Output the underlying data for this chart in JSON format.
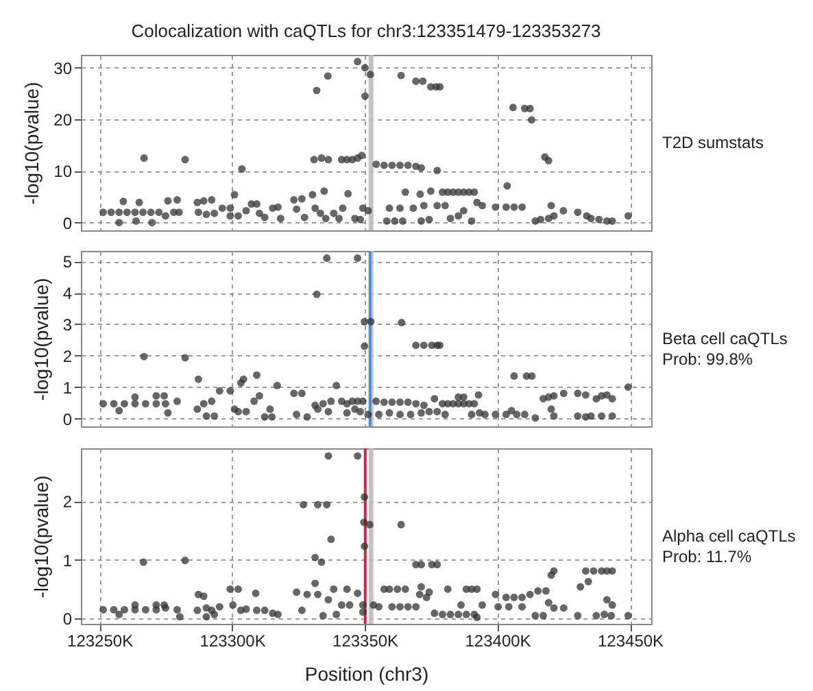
{
  "chart_data": [
    {
      "type": "scatter",
      "title": "Colocalization with caQTLs for chr3:123351479-123353273",
      "ylabel": "-log10(pvalue)",
      "annotations": [
        "T2D sumstats"
      ],
      "color": "#333333",
      "marker": "circle",
      "grid": true,
      "tick_labels": "y",
      "xlim": [
        123243,
        123458
      ],
      "xticks": [
        {
          "value": 123250,
          "label": null
        },
        {
          "value": 123300,
          "label": null
        },
        {
          "value": 123350,
          "label": null
        },
        {
          "value": 123400,
          "label": null
        },
        {
          "value": 123450,
          "label": null
        }
      ],
      "ylim": [
        -1.5,
        32.5
      ],
      "yticks": [
        0,
        10,
        20,
        30
      ],
      "bands": [
        {
          "axis": "x",
          "from": 123351.479,
          "to": 123353.273,
          "color": "#bdbdbd"
        }
      ],
      "x": [
        123251.4,
        123254.4,
        123257.4,
        123260.4,
        123263.4,
        123266.4,
        123269.4,
        123272.4,
        123274.9,
        123259,
        123257.4,
        123263.8,
        123265,
        123269.8,
        123266.8,
        123282.3,
        123275.8,
        123279.3,
        123278,
        123280,
        123286.9,
        123289.3,
        123292.3,
        123287.3,
        123290.3,
        123293.3,
        123296.3,
        123299.3,
        123300.9,
        123299.3,
        123302.3,
        123303.7,
        123305.3,
        123307.3,
        123309.3,
        123310.3,
        123312.3,
        123315.3,
        123317.3,
        123318.3,
        123323.3,
        123326.3,
        123324.3,
        123327.3,
        123330.3,
        123331.3,
        123331.9,
        123336.1,
        123330.9,
        123333.7,
        123336.3,
        123334.7,
        123333.3,
        123335.3,
        123338.3,
        123340.3,
        123341.3,
        123343.3,
        123345.3,
        123347.3,
        123348.9,
        123343.7,
        123341.7,
        123347.3,
        123350.1,
        123352.1,
        123350.1,
        123349.3,
        123351.3,
        123346.3,
        123348.3,
        123354.3,
        123357.3,
        123360.3,
        123363.3,
        123366.3,
        123369.3,
        123371.3,
        123377.3,
        123363.7,
        123369.3,
        123371.9,
        123374.9,
        123376.9,
        123378.3,
        123358.3,
        123361.3,
        123364.3,
        123359.3,
        123363.3,
        123365.3,
        123368.3,
        123370.9,
        123372.3,
        123374.9,
        123371.3,
        123374.3,
        123377.3,
        123380.3,
        123379.3,
        123381.3,
        123383.3,
        123385.3,
        123387.3,
        123389.3,
        123391.3,
        123382.3,
        123385.3,
        123387.3,
        123390.3,
        123392.3,
        123394.3,
        123399.3,
        123403.3,
        123406.3,
        123409.3,
        123403.7,
        123405.9,
        123410.3,
        123412.3,
        123412.9,
        123414.3,
        123416.3,
        123419.3,
        123421.3,
        123420.3,
        123417.9,
        123419.3,
        123424.9,
        123430.3,
        123433.7,
        123435.3,
        123438.3,
        123441.3,
        123443.3,
        123449.3
      ],
      "values": [
        2,
        2,
        2,
        2,
        2,
        2,
        2,
        2,
        1.3,
        4.1,
        0,
        0.3,
        3.9,
        0,
        12.5,
        12.2,
        4.2,
        4.4,
        2,
        2,
        3.9,
        4.2,
        4.4,
        2,
        1.6,
        1.8,
        2.8,
        2.8,
        5.4,
        1.3,
        1.3,
        10.4,
        2.3,
        3.6,
        3.6,
        1.8,
        1,
        2.8,
        3,
        0.8,
        4.4,
        4.6,
        2.6,
        1,
        5.4,
        2.8,
        25.6,
        28.4,
        12.2,
        12.5,
        12.2,
        6.1,
        1.8,
        0.8,
        1.8,
        0.8,
        12.2,
        12.2,
        12.2,
        12.5,
        13,
        5.6,
        2.8,
        31.2,
        30,
        28.7,
        24.5,
        2.8,
        2.3,
        0.8,
        0.6,
        11.3,
        11.1,
        11.1,
        11.1,
        11.1,
        10.9,
        10.6,
        10.1,
        28.5,
        27.4,
        27.4,
        26.3,
        26.3,
        26.3,
        0.3,
        0.3,
        0.3,
        2.8,
        2.8,
        5.9,
        2.8,
        5.5,
        3.3,
        6.1,
        0.3,
        0.6,
        3.3,
        3.3,
        5.9,
        5.9,
        5.9,
        5.9,
        5.9,
        5.9,
        5.9,
        0.8,
        1.3,
        2.3,
        0.3,
        3.9,
        3.3,
        3,
        3,
        3,
        3,
        7.1,
        22.3,
        22.1,
        22.1,
        19.9,
        0.3,
        0.6,
        0.8,
        1.3,
        3.3,
        12.7,
        12,
        2.3,
        2,
        1.3,
        0.8,
        0.6,
        0.3,
        0.3,
        1.3
      ]
    },
    {
      "type": "scatter",
      "ylabel": "-log10(pvalue)",
      "annotations": [
        "Beta cell caQTLs",
        "Prob: 99.8%"
      ],
      "color": "#333333",
      "marker": "circle",
      "grid": true,
      "tick_labels": "y",
      "xlim": [
        123243,
        123458
      ],
      "xticks": [
        {
          "value": 123250,
          "label": null
        },
        {
          "value": 123300,
          "label": null
        },
        {
          "value": 123350,
          "label": null
        },
        {
          "value": 123400,
          "label": null
        },
        {
          "value": 123450,
          "label": null
        }
      ],
      "ylim": [
        -0.25,
        5.33
      ],
      "yticks": [
        0,
        1,
        2,
        3,
        4,
        5
      ],
      "bands": [
        {
          "axis": "x",
          "from": 123351.479,
          "to": 123353.273,
          "color": "#bdbdbd"
        }
      ],
      "ref_lines": [
        {
          "axis": "x",
          "value": 123352.0,
          "color": "#4a8fcf"
        }
      ],
      "x": [
        123251.4,
        123255.4,
        123259.4,
        123263.4,
        123267.4,
        123271.4,
        123274.9,
        123257.4,
        123263.4,
        123271.4,
        123274.4,
        123275.8,
        123266.8,
        123282.3,
        123279.3,
        123287.3,
        123286.9,
        123289.3,
        123292.3,
        123295.3,
        123290.3,
        123293.3,
        123299.3,
        123300.9,
        123303.3,
        123304.3,
        123302.3,
        123305.3,
        123309.3,
        123308.3,
        123310.3,
        123312.3,
        123314.3,
        123317,
        123315,
        123323.3,
        123326.3,
        123324.3,
        123328.3,
        123331.3,
        123332.3,
        123334.3,
        123336.3,
        123339.3,
        123337.3,
        123341.3,
        123343.3,
        123345.3,
        123347.3,
        123349.3,
        123335.7,
        123331.9,
        123347.3,
        123349.9,
        123352.3,
        123349.9,
        123348.3,
        123351.3,
        123346.3,
        123343.3,
        123354.3,
        123357.3,
        123360.3,
        123363.3,
        123366.3,
        123369.3,
        123372.3,
        123355.3,
        123359.3,
        123363.3,
        123367.3,
        123371.3,
        123374.3,
        123363.9,
        123369.3,
        123372.3,
        123375.3,
        123377.3,
        123378.3,
        123376.3,
        123377.3,
        123380.3,
        123379.3,
        123381.3,
        123383.3,
        123385.3,
        123387.3,
        123389.3,
        123391.3,
        123385.3,
        123387.3,
        123392.9,
        123390.3,
        123393.3,
        123395.3,
        123399.3,
        123403.3,
        123407.3,
        123410.3,
        123405.3,
        123406.3,
        123411,
        123413,
        123414.3,
        123417.3,
        123419.3,
        123421.3,
        123425,
        123420.3,
        123421.3,
        123430.3,
        123433.3,
        123430.3,
        123433.3,
        123435.3,
        123437.3,
        123439.3,
        123441.3,
        123443.3,
        123439.3,
        123443.3,
        123449.3
      ],
      "values": [
        0.47,
        0.47,
        0.47,
        0.47,
        0.47,
        0.47,
        0.47,
        0.25,
        0.68,
        0.72,
        0.72,
        0.18,
        1.97,
        1.93,
        0.55,
        1.25,
        0.3,
        0.47,
        0.55,
        0.88,
        0.08,
        0.08,
        0.88,
        0.3,
        1.13,
        1.25,
        0.22,
        0.22,
        1.38,
        0.55,
        0.72,
        0.05,
        0.3,
        1.05,
        0.05,
        0.8,
        0.8,
        0.13,
        0.05,
        0.42,
        0.3,
        0.47,
        0.22,
        1.05,
        0.55,
        0.55,
        0.47,
        0.55,
        0.55,
        0.55,
        5.1,
        3.95,
        5.1,
        3.08,
        3.08,
        2.3,
        0.22,
        0.13,
        0.3,
        0.18,
        0.55,
        0.52,
        0.52,
        0.52,
        0.52,
        0.47,
        0.42,
        0.13,
        0.18,
        0.13,
        0.13,
        0.18,
        0.22,
        3.05,
        2.33,
        2.33,
        2.33,
        2.33,
        2.33,
        0.63,
        0.22,
        0.13,
        0.47,
        0.47,
        0.47,
        0.47,
        0.47,
        0.47,
        0.47,
        0.68,
        0.68,
        0.75,
        0.13,
        0.18,
        0.13,
        0.13,
        0.13,
        0.13,
        0.13,
        0.25,
        1.35,
        1.35,
        1.35,
        0.02,
        0.63,
        0.68,
        0.72,
        0.8,
        0.3,
        0.08,
        0.8,
        0.75,
        0.08,
        0.05,
        0.08,
        0.63,
        0.72,
        0.75,
        0.63,
        0.08,
        0.08,
        1
      ]
    },
    {
      "type": "scatter",
      "ylabel": "-log10(pvalue)",
      "xlabel": "Position (chr3)",
      "annotations": [
        "Alpha cell caQTLs",
        "Prob: 11.7%"
      ],
      "color": "#333333",
      "marker": "circle",
      "grid": true,
      "xlim": [
        123243,
        123458
      ],
      "xticks": [
        {
          "value": 123250,
          "label": "123250K"
        },
        {
          "value": 123300,
          "label": "123300K"
        },
        {
          "value": 123350,
          "label": "123350K"
        },
        {
          "value": 123400,
          "label": "123400K"
        },
        {
          "value": 123450,
          "label": "123450K"
        }
      ],
      "ylim": [
        -0.09,
        2.9
      ],
      "yticks": [
        0,
        1,
        2
      ],
      "bands": [
        {
          "axis": "x",
          "from": 123351.479,
          "to": 123353.273,
          "color": "#bdbdbd"
        }
      ],
      "ref_lines": [
        {
          "axis": "x",
          "value": 123350.2,
          "color": "#d9233a"
        }
      ],
      "x": [
        123251.4,
        123255.4,
        123259.4,
        123263.4,
        123267.4,
        123271.4,
        123274.9,
        123257.4,
        123263.4,
        123271.4,
        123274.4,
        123266.6,
        123282.3,
        123279.3,
        123280.3,
        123287.3,
        123289.3,
        123286.9,
        123290.3,
        123292.3,
        123295.3,
        123299.3,
        123302.3,
        123308.9,
        123300.3,
        123303.3,
        123305.3,
        123309.3,
        123312.3,
        123315.3,
        123317.3,
        123290.3,
        123293.3,
        123324.3,
        123326.3,
        123328.3,
        123331.3,
        123332.3,
        123334.3,
        123338.3,
        123336.3,
        123339.3,
        123341.3,
        123343.3,
        123344.3,
        123347.3,
        123349.3,
        123326.9,
        123332.3,
        123335.7,
        123331.3,
        123333.7,
        123337.3,
        123336.3,
        123347.3,
        123349.9,
        123349.7,
        123351.9,
        123349.9,
        123349.3,
        123353.3,
        123355.3,
        123357.3,
        123359.3,
        123362.3,
        123365.3,
        123360.3,
        123363.3,
        123366.3,
        123369.3,
        123363.7,
        123369.3,
        123371.3,
        123375.3,
        123377.3,
        123371.3,
        123374.3,
        123370.7,
        123373.3,
        123376.3,
        123379.3,
        123382.3,
        123385.3,
        123388.3,
        123391.3,
        123392.3,
        123381.3,
        123388.3,
        123390.3,
        123392.3,
        123386.3,
        123394.3,
        123399.3,
        123400.3,
        123404.3,
        123403.3,
        123406.3,
        123409.3,
        123412.3,
        123415.3,
        123418.3,
        123409.3,
        123420.3,
        123421.3,
        123419.3,
        123421.3,
        123425,
        123414.3,
        123417.3,
        123430.3,
        123431.3,
        123433.3,
        123436.3,
        123439.3,
        123441.3,
        123443.3,
        123434.3,
        123441.3,
        123443.3,
        123437.3,
        123440.3,
        123442.9,
        123449.3
      ],
      "values": [
        0.15,
        0.15,
        0.15,
        0.15,
        0.15,
        0.15,
        0.18,
        0.07,
        0.23,
        0.23,
        0.23,
        0.96,
        0.99,
        0.15,
        0.03,
        0.41,
        0.38,
        0.14,
        0.18,
        0.14,
        0.2,
        0.5,
        0.5,
        0.43,
        0.23,
        0.14,
        0.16,
        0.14,
        0.14,
        0.09,
        0.07,
        0.03,
        0.07,
        0.45,
        0.14,
        0.41,
        0.6,
        0.41,
        0.05,
        0.5,
        0.32,
        0.07,
        0.23,
        0.5,
        0.23,
        0.43,
        0.23,
        1.94,
        1.94,
        1.94,
        1.04,
        0.96,
        1.35,
        2.77,
        2.77,
        2.07,
        1.64,
        1.6,
        1.23,
        0.11,
        0.23,
        0.2,
        0.5,
        0.5,
        0.5,
        0.5,
        0.2,
        0.2,
        0.2,
        0.2,
        1.6,
        0.92,
        0.92,
        0.92,
        0.92,
        0.54,
        0.45,
        0.41,
        0.36,
        0.09,
        0.07,
        0.07,
        0.07,
        0.07,
        0.07,
        0.02,
        0.5,
        0.5,
        0.5,
        0.5,
        0.23,
        0.23,
        0.41,
        0.2,
        0.2,
        0.36,
        0.36,
        0.36,
        0.41,
        0.47,
        0.47,
        0.2,
        0.74,
        0.81,
        0.27,
        0.18,
        0.18,
        0.05,
        0.05,
        0.05,
        0.54,
        0.81,
        0.81,
        0.81,
        0.81,
        0.81,
        0.63,
        0.32,
        0.23,
        0.05,
        0.07,
        0.05,
        0.05
      ]
    }
  ]
}
